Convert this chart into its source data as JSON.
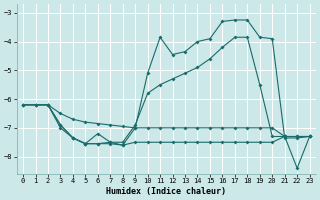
{
  "bg_color": "#cce8e8",
  "grid_color": "#b0d4d4",
  "line_color": "#1a6b6b",
  "xlabel": "Humidex (Indice chaleur)",
  "xlim": [
    -0.5,
    23.5
  ],
  "ylim": [
    -8.6,
    -2.7
  ],
  "yticks": [
    -8,
    -7,
    -6,
    -5,
    -4,
    -3
  ],
  "xticks": [
    0,
    1,
    2,
    3,
    4,
    5,
    6,
    7,
    8,
    9,
    10,
    11,
    12,
    13,
    14,
    15,
    16,
    17,
    18,
    19,
    20,
    21,
    22,
    23
  ],
  "series1_x": [
    0,
    1,
    2,
    3,
    4,
    5,
    6,
    7,
    8,
    9,
    10,
    11,
    12,
    13,
    14,
    15,
    16,
    17,
    18,
    19,
    20,
    21,
    22,
    23
  ],
  "series1_y": [
    -6.2,
    -6.2,
    -6.2,
    -6.5,
    -6.7,
    -6.8,
    -6.85,
    -6.9,
    -6.95,
    -7.0,
    -7.0,
    -7.0,
    -7.0,
    -7.0,
    -7.0,
    -7.0,
    -7.0,
    -7.0,
    -7.0,
    -7.0,
    -7.0,
    -7.3,
    -7.3,
    -7.3
  ],
  "series2_x": [
    2,
    3,
    4,
    5,
    6,
    7,
    8,
    9,
    10,
    11,
    12,
    13,
    14,
    15,
    16,
    17,
    18,
    19,
    20,
    21,
    22,
    23
  ],
  "series2_y": [
    -6.2,
    -7.0,
    -7.35,
    -7.55,
    -7.55,
    -7.55,
    -7.6,
    -7.5,
    -7.5,
    -7.5,
    -7.5,
    -7.5,
    -7.5,
    -7.5,
    -7.5,
    -7.5,
    -7.5,
    -7.5,
    -7.5,
    -7.3,
    -7.3,
    -7.3
  ],
  "series3_x": [
    0,
    1,
    2,
    3,
    4,
    5,
    6,
    7,
    8,
    9,
    10,
    11,
    12,
    13,
    14,
    15,
    16,
    17,
    18,
    19,
    20,
    21,
    22,
    23
  ],
  "series3_y": [
    -6.2,
    -6.2,
    -6.2,
    -6.9,
    -7.35,
    -7.55,
    -7.2,
    -7.5,
    -7.6,
    -7.0,
    -5.1,
    -3.85,
    -4.45,
    -4.35,
    -4.0,
    -3.9,
    -3.3,
    -3.25,
    -3.25,
    -3.85,
    -3.9,
    -7.35,
    -7.35,
    -7.3
  ],
  "series4_x": [
    0,
    1,
    2,
    3,
    4,
    5,
    6,
    7,
    8,
    9,
    10,
    11,
    12,
    13,
    14,
    15,
    16,
    17,
    18,
    19,
    20,
    21,
    22,
    23
  ],
  "series4_y": [
    -6.2,
    -6.2,
    -6.2,
    -6.9,
    -7.35,
    -7.55,
    -7.55,
    -7.5,
    -7.5,
    -6.9,
    -5.8,
    -5.5,
    -5.3,
    -5.1,
    -4.9,
    -4.6,
    -4.2,
    -3.85,
    -3.85,
    -5.5,
    -7.3,
    -7.3,
    -8.4,
    -7.3
  ]
}
